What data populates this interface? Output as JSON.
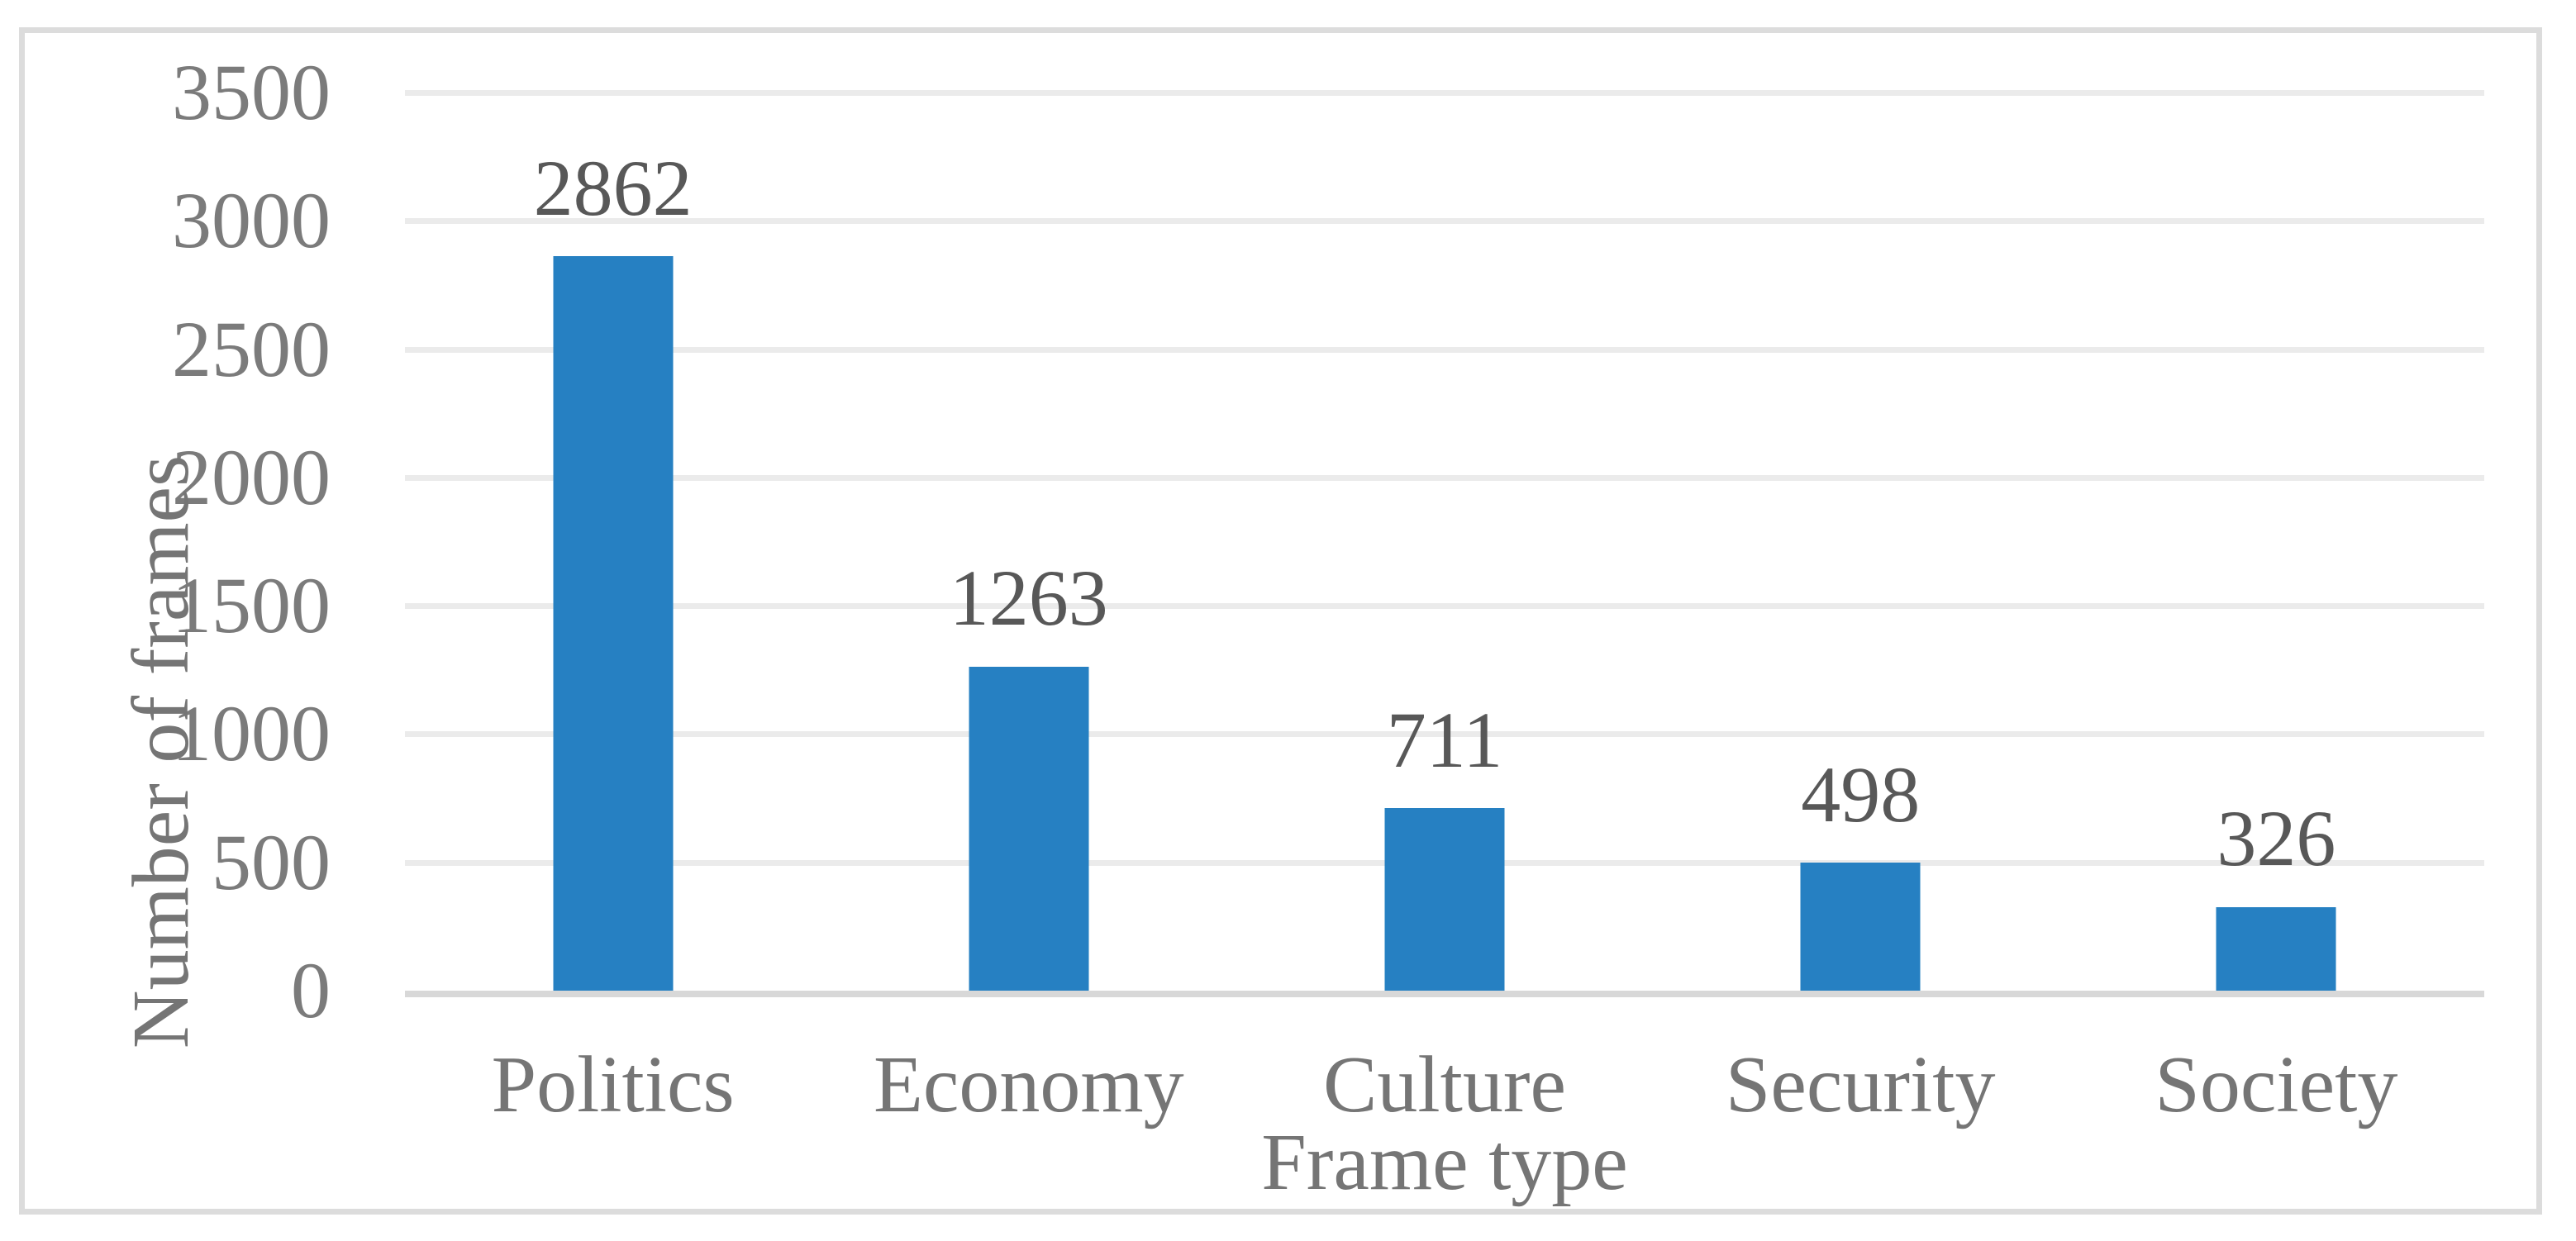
{
  "figure": {
    "background": "#FFFFFF",
    "border_color": "#DCDCDC"
  },
  "chart_data": {
    "type": "bar",
    "title": "",
    "categories": [
      "Politics",
      "Economy",
      "Culture",
      "Security",
      "Society"
    ],
    "values": [
      2862,
      1263,
      711,
      498,
      326
    ],
    "data_labels": [
      "2862",
      "1263",
      "711",
      "498",
      "326"
    ],
    "xlabel": "Frame type",
    "ylabel": "Number of frames",
    "ylim": [
      0,
      3500
    ],
    "yticks": [
      0,
      500,
      1000,
      1500,
      2000,
      2500,
      3000,
      3500
    ],
    "grid": true,
    "legend_position": "none",
    "bar_color": "#2680C2",
    "gridline_color": "#EBEBEB",
    "axis_line_color": "#D8D8D8",
    "tick_label_color": "#7B7B7B",
    "category_label_color": "#757575",
    "data_label_color": "#585858",
    "axis_title_color": "#757575"
  }
}
